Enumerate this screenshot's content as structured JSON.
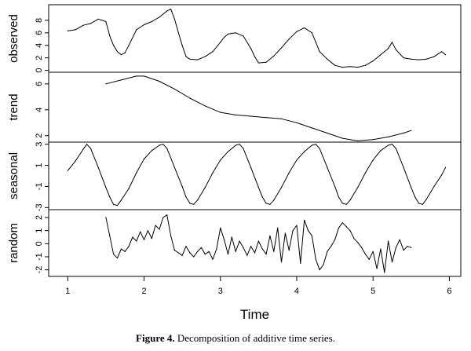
{
  "chart_data": {
    "type": "line",
    "title": "",
    "xlabel": "Time",
    "xlim": [
      0.75,
      6.15
    ],
    "x_ticks": [
      1,
      2,
      3,
      4,
      5,
      6
    ],
    "x_tick_labels": [
      "1",
      "2",
      "3",
      "4",
      "5",
      "6"
    ],
    "panels": [
      {
        "name": "observed",
        "ylabel": "observed",
        "ylim": [
          -0.3,
          10.5
        ],
        "y_ticks": [
          0,
          2,
          4,
          6,
          8
        ],
        "y_tick_labels": [
          "0",
          "2",
          "4",
          "6",
          "8"
        ],
        "series": [
          {
            "x": [
              1.0,
              1.1,
              1.2,
              1.3,
              1.4,
              1.5,
              1.55,
              1.6,
              1.65,
              1.7,
              1.75,
              1.8,
              1.9,
              2.0,
              2.1,
              2.2,
              2.3,
              2.35,
              2.4,
              2.45,
              2.5,
              2.55,
              2.6,
              2.7,
              2.8,
              2.9,
              3.0,
              3.05,
              3.1,
              3.2,
              3.3,
              3.4,
              3.45,
              3.5,
              3.6,
              3.7,
              3.8,
              3.9,
              4.0,
              4.1,
              4.2,
              4.25,
              4.3,
              4.4,
              4.5,
              4.6,
              4.7,
              4.8,
              4.9,
              5.0,
              5.1,
              5.2,
              5.25,
              5.3,
              5.4,
              5.5,
              5.6,
              5.7,
              5.8,
              5.9,
              5.95
            ],
            "values": [
              6.3,
              6.5,
              7.2,
              7.5,
              8.2,
              7.8,
              5.5,
              4.0,
              3.0,
              2.5,
              2.8,
              4.0,
              6.5,
              7.3,
              7.8,
              8.5,
              9.5,
              9.8,
              8.2,
              6.0,
              4.0,
              2.2,
              1.8,
              1.7,
              2.2,
              3.0,
              4.5,
              5.3,
              5.8,
              6.0,
              5.5,
              3.5,
              2.2,
              1.2,
              1.3,
              2.3,
              3.6,
              5.0,
              6.2,
              6.8,
              6.0,
              4.5,
              3.0,
              1.8,
              0.8,
              0.5,
              0.6,
              0.5,
              0.8,
              1.5,
              2.5,
              3.5,
              4.5,
              3.3,
              2.0,
              1.8,
              1.7,
              1.8,
              2.2,
              3.0,
              2.5
            ]
          }
        ]
      },
      {
        "name": "trend",
        "ylabel": "trend",
        "ylim": [
          1.5,
          6.9
        ],
        "y_ticks": [
          2,
          4,
          6
        ],
        "y_tick_labels": [
          "2",
          "4",
          "6"
        ],
        "series": [
          {
            "x": [
              1.5,
              1.7,
              1.9,
              2.0,
              2.2,
              2.4,
              2.6,
              2.8,
              3.0,
              3.2,
              3.4,
              3.6,
              3.8,
              4.0,
              4.2,
              4.4,
              4.6,
              4.8,
              5.0,
              5.2,
              5.4,
              5.5
            ],
            "values": [
              6.0,
              6.3,
              6.6,
              6.6,
              6.2,
              5.6,
              4.9,
              4.3,
              3.8,
              3.6,
              3.5,
              3.4,
              3.3,
              3.0,
              2.6,
              2.2,
              1.8,
              1.6,
              1.7,
              1.9,
              2.2,
              2.4
            ]
          }
        ]
      },
      {
        "name": "seasonal",
        "ylabel": "seasonal",
        "ylim": [
          -3.2,
          3.2
        ],
        "y_ticks": [
          -3,
          -1,
          1,
          3
        ],
        "y_tick_labels": [
          "-3",
          "-1",
          "1",
          "3"
        ],
        "series": [
          {
            "x": [
              1.0,
              1.1,
              1.2,
              1.25,
              1.3,
              1.4,
              1.5,
              1.55,
              1.6,
              1.65,
              1.7,
              1.8,
              1.9,
              2.0,
              2.1,
              2.2,
              2.25,
              2.3,
              2.4,
              2.5,
              2.55,
              2.6,
              2.65,
              2.7,
              2.8,
              2.9,
              3.0,
              3.1,
              3.2,
              3.25,
              3.3,
              3.4,
              3.5,
              3.55,
              3.6,
              3.65,
              3.7,
              3.8,
              3.9,
              4.0,
              4.1,
              4.2,
              4.25,
              4.3,
              4.4,
              4.5,
              4.55,
              4.6,
              4.65,
              4.7,
              4.8,
              4.9,
              5.0,
              5.1,
              5.2,
              5.25,
              5.3,
              5.4,
              5.5,
              5.55,
              5.6,
              5.65,
              5.7,
              5.8,
              5.9,
              5.95
            ],
            "values": [
              0.5,
              1.4,
              2.5,
              3.0,
              2.6,
              0.8,
              -1.1,
              -2.0,
              -2.7,
              -2.8,
              -2.3,
              -1.2,
              0.3,
              1.6,
              2.4,
              2.9,
              3.0,
              2.6,
              0.8,
              -1.0,
              -2.0,
              -2.6,
              -2.7,
              -2.3,
              -1.1,
              0.3,
              1.5,
              2.3,
              2.9,
              3.0,
              2.6,
              0.8,
              -1.1,
              -2.0,
              -2.6,
              -2.7,
              -2.3,
              -1.1,
              0.3,
              1.5,
              2.3,
              2.9,
              3.0,
              2.6,
              0.8,
              -1.0,
              -2.0,
              -2.6,
              -2.7,
              -2.3,
              -1.1,
              0.3,
              1.5,
              2.4,
              2.9,
              3.0,
              2.6,
              0.8,
              -1.1,
              -2.0,
              -2.6,
              -2.7,
              -2.2,
              -1.0,
              0.1,
              0.8
            ]
          }
        ]
      },
      {
        "name": "random",
        "ylabel": "random",
        "ylim": [
          -2.5,
          2.6
        ],
        "y_ticks": [
          -2,
          -1,
          0,
          1,
          2
        ],
        "y_tick_labels": [
          "-2",
          "-1",
          "0",
          "1",
          "2"
        ],
        "series": [
          {
            "x": [
              1.5,
              1.55,
              1.6,
              1.65,
              1.7,
              1.75,
              1.8,
              1.85,
              1.9,
              1.95,
              2.0,
              2.05,
              2.1,
              2.15,
              2.2,
              2.25,
              2.3,
              2.35,
              2.4,
              2.45,
              2.5,
              2.55,
              2.6,
              2.65,
              2.7,
              2.75,
              2.8,
              2.85,
              2.9,
              2.95,
              3.0,
              3.05,
              3.1,
              3.15,
              3.2,
              3.25,
              3.3,
              3.35,
              3.4,
              3.45,
              3.5,
              3.55,
              3.6,
              3.65,
              3.7,
              3.75,
              3.8,
              3.85,
              3.9,
              3.95,
              4.0,
              4.05,
              4.1,
              4.15,
              4.2,
              4.25,
              4.3,
              4.35,
              4.4,
              4.45,
              4.5,
              4.55,
              4.6,
              4.65,
              4.7,
              4.75,
              4.8,
              4.85,
              4.9,
              4.95,
              5.0,
              5.05,
              5.1,
              5.15,
              5.2,
              5.25,
              5.3,
              5.35,
              5.4,
              5.45,
              5.5
            ],
            "values": [
              2.0,
              0.6,
              -0.8,
              -1.1,
              -0.4,
              -0.6,
              -0.2,
              0.5,
              0.2,
              0.9,
              0.3,
              1.0,
              0.4,
              1.4,
              1.1,
              2.0,
              2.2,
              0.6,
              -0.5,
              -0.7,
              -0.9,
              -0.2,
              -0.7,
              -1.0,
              -0.6,
              -0.3,
              -0.8,
              -0.6,
              -1.2,
              -0.4,
              1.2,
              0.3,
              -0.8,
              0.5,
              -0.6,
              0.2,
              -0.3,
              -0.9,
              -0.2,
              -0.7,
              0.2,
              -0.4,
              -0.8,
              0.6,
              -0.6,
              1.2,
              -1.4,
              0.8,
              -0.5,
              1.0,
              1.4,
              -1.5,
              1.8,
              1.0,
              0.6,
              -1.2,
              -2.0,
              -1.6,
              -0.6,
              -0.2,
              0.3,
              1.2,
              1.6,
              1.3,
              1.0,
              0.4,
              0.1,
              -0.3,
              -0.8,
              -1.2,
              -0.6,
              -1.9,
              -0.4,
              -2.2,
              0.2,
              -1.4,
              -0.3,
              0.3,
              -0.5,
              -0.2,
              -0.3
            ]
          }
        ]
      }
    ]
  },
  "caption": {
    "label": "Figure 4.",
    "text": " Decomposition of additive time series."
  }
}
